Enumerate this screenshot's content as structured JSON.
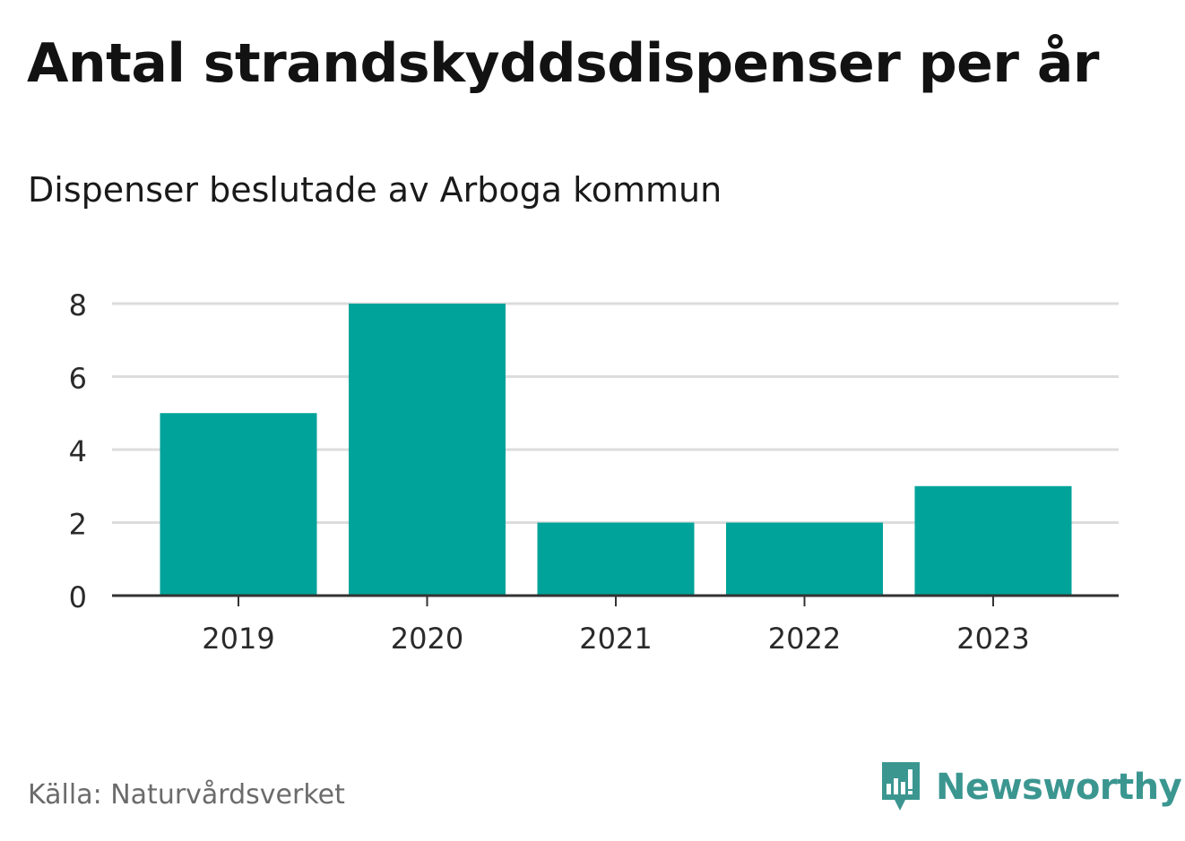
{
  "title": "Antal strandskyddsdispenser per år",
  "subtitle": "Dispenser beslutade av Arboga kommun",
  "source": "Källa: Naturvårdsverket",
  "brand": {
    "name": "Newsworthy",
    "icon": "newsworthy-logo-icon",
    "color": "#3b9690"
  },
  "colors": {
    "bar": "#00a39a",
    "grid": "#dcdcdc",
    "axis": "#333333"
  },
  "chart_data": {
    "type": "bar",
    "title": "Antal strandskyddsdispenser per år",
    "subtitle": "Dispenser beslutade av Arboga kommun",
    "categories": [
      "2019",
      "2020",
      "2021",
      "2022",
      "2023"
    ],
    "values": [
      5,
      8,
      2,
      2,
      3
    ],
    "xlabel": "",
    "ylabel": "",
    "ylim": [
      0,
      8
    ],
    "yticks": [
      0,
      2,
      4,
      6,
      8
    ],
    "grid": true,
    "legend": "none"
  }
}
